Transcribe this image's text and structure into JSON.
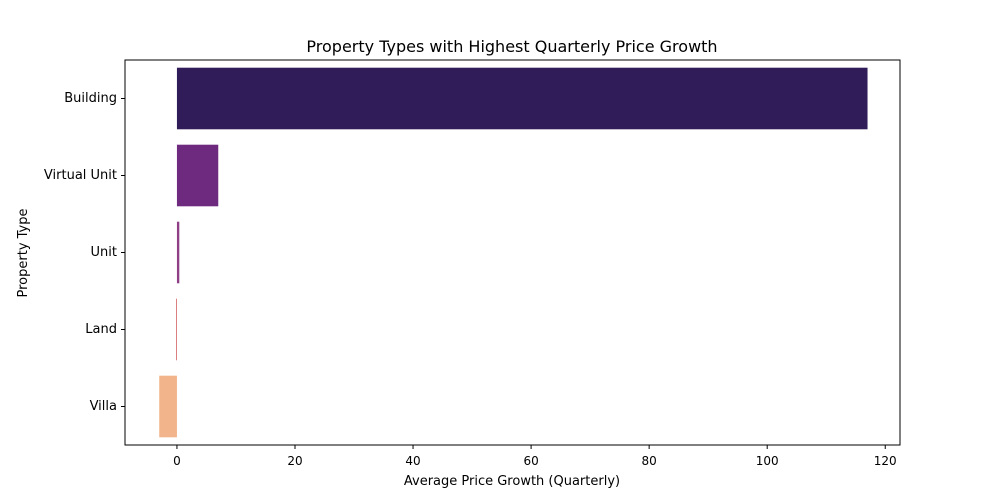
{
  "chart_data": {
    "type": "bar",
    "orientation": "horizontal",
    "title": "Property Types with Highest Quarterly Price Growth",
    "xlabel": "Average Price Growth (Quarterly)",
    "ylabel": "Property Type",
    "categories": [
      "Building",
      "Virtual Unit",
      "Unit",
      "Land",
      "Villa"
    ],
    "values": [
      117,
      7,
      0.4,
      -0.15,
      -3
    ],
    "colors": [
      "#2f1c59",
      "#6d2a7f",
      "#8e3f86",
      "#d77070",
      "#f1b48b"
    ],
    "xlim": [
      -8.8,
      122.5
    ],
    "xticks": [
      0,
      20,
      40,
      60,
      80,
      100,
      120
    ],
    "grid": false,
    "legend": "none"
  }
}
